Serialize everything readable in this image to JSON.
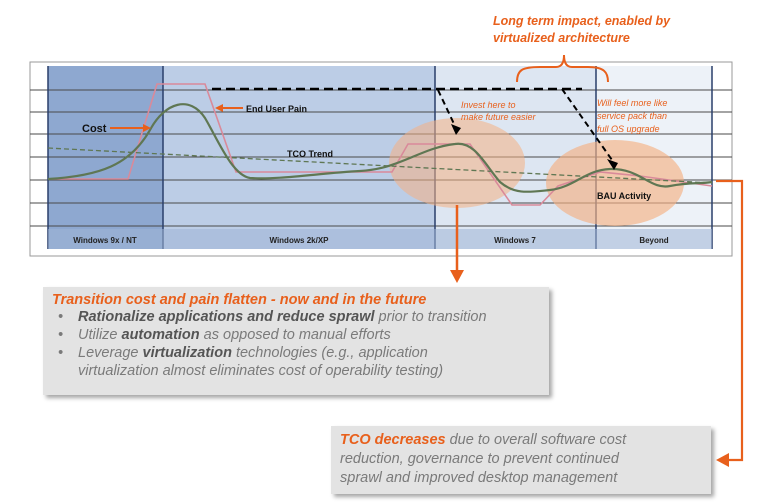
{
  "header": {
    "line1": "Long term impact, enabled by",
    "line2": "virtualized architecture"
  },
  "phases": [
    "Windows 9x / NT",
    "Windows 2k/XP",
    "Windows 7",
    "Beyond"
  ],
  "labels": {
    "cost": "Cost",
    "end_user_pain": "End User Pain",
    "tco_trend": "TCO Trend",
    "invest_line1": "Invest here to",
    "invest_line2": "make future easier",
    "will_line1": "Will  feel more like",
    "will_line2": "service pack than",
    "will_line3": "full OS upgrade",
    "bau": "BAU Activity"
  },
  "box1": {
    "title": "Transition cost and pain flatten - now and in the future",
    "b1_strong": "Rationalize applications and reduce sprawl",
    "b1_rest": " prior to transition",
    "b2_pre": "Utilize ",
    "b2_strong": "automation",
    "b2_rest": " as opposed to manual efforts",
    "b3_pre": "Leverage ",
    "b3_strong": "virtualization",
    "b3_rest": " technologies (e.g., application",
    "b3_line2": "virtualization almost eliminates cost of operability testing)"
  },
  "box2": {
    "strong": "TCO decreases",
    "rest1": " due to overall software cost",
    "line2": "reduction, governance to prevent continued",
    "line3": "sprawl and improved desktop management"
  },
  "colors": {
    "accent": "#e8601c",
    "phase1": "#8ea8d0",
    "phase2": "#bccde6",
    "phase3": "#dde6f2",
    "phase4": "#edf2f8",
    "grid": "#4a4a4a",
    "cost_line": "#5f7753",
    "pain_line": "#d98a9a"
  }
}
